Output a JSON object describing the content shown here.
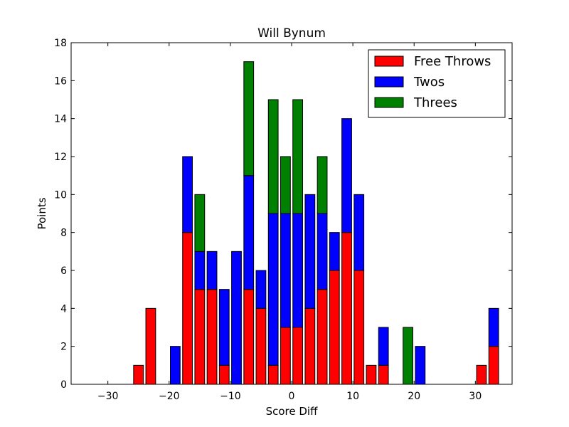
{
  "chart_data": {
    "type": "bar",
    "stacked": true,
    "title": "Will Bynum",
    "xlabel": "Score Diff",
    "ylabel": "Points",
    "xlim": [
      -36,
      36
    ],
    "ylim": [
      0,
      18
    ],
    "xticks": [
      -30,
      -20,
      -10,
      0,
      10,
      20,
      30
    ],
    "xtick_labels": [
      "−30",
      "−20",
      "−10",
      "0",
      "10",
      "20",
      "30"
    ],
    "yticks": [
      0,
      2,
      4,
      6,
      8,
      10,
      12,
      14,
      16,
      18
    ],
    "bar_width": 1.6,
    "grid": false,
    "legend_position": "upper right",
    "x": [
      -35,
      -33,
      -31,
      -29,
      -27,
      -25,
      -23,
      -21,
      -19,
      -17,
      -15,
      -13,
      -11,
      -9,
      -7,
      -5,
      -3,
      -1,
      1,
      3,
      5,
      7,
      9,
      11,
      13,
      15,
      17,
      19,
      21,
      23,
      25,
      27,
      29,
      31,
      33
    ],
    "series": [
      {
        "name": "Free Throws",
        "color": "#ff0000",
        "values": [
          0,
          0,
          0,
          0,
          0,
          1,
          4,
          0,
          0,
          8,
          5,
          5,
          1,
          0,
          5,
          4,
          1,
          3,
          3,
          4,
          5,
          6,
          8,
          6,
          1,
          1,
          0,
          0,
          0,
          0,
          0,
          0,
          0,
          1,
          2
        ]
      },
      {
        "name": "Twos",
        "color": "#0000ff",
        "values": [
          0,
          0,
          0,
          0,
          0,
          0,
          0,
          0,
          2,
          4,
          2,
          2,
          4,
          7,
          6,
          2,
          8,
          6,
          6,
          6,
          4,
          2,
          6,
          4,
          0,
          2,
          0,
          0,
          2,
          0,
          0,
          0,
          0,
          0,
          2
        ]
      },
      {
        "name": "Threes",
        "color": "#008000",
        "values": [
          0,
          0,
          0,
          0,
          0,
          0,
          0,
          0,
          0,
          0,
          3,
          0,
          0,
          0,
          6,
          0,
          6,
          3,
          6,
          0,
          3,
          0,
          0,
          0,
          0,
          0,
          0,
          3,
          0,
          0,
          0,
          0,
          0,
          0,
          0
        ]
      }
    ]
  }
}
